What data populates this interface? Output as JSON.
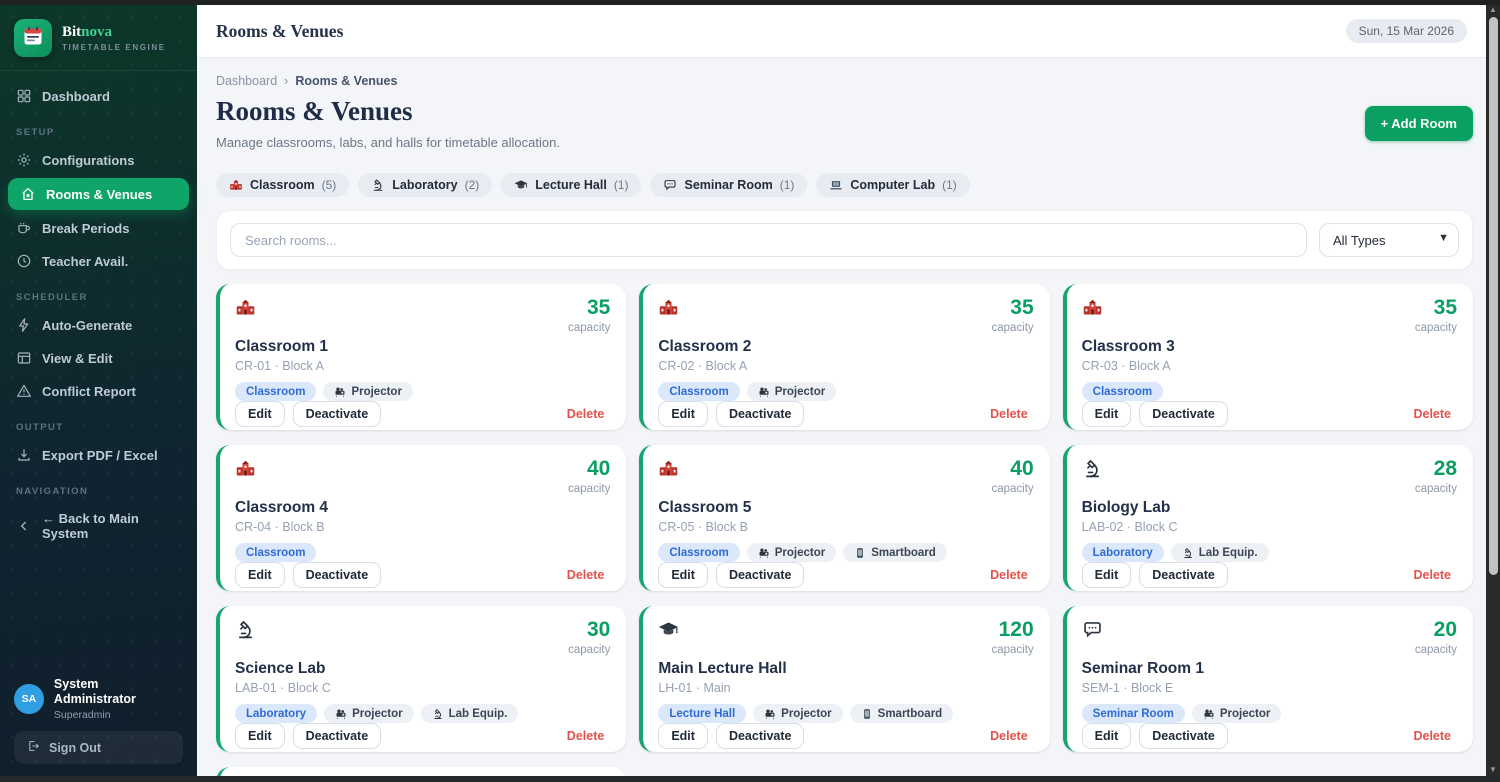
{
  "colors": {
    "accent_green": "#0aa061",
    "card_border_green": "#16a571",
    "tag_blue_bg": "#dbe7fb",
    "tag_blue_text": "#2e6bd3",
    "delete_red": "#e4524c",
    "avatar_blue": "#2f9fe2",
    "active_item_green": "#0fa569"
  },
  "sidebar": {
    "brand": {
      "name_primary": "Bit",
      "name_secondary": "nova",
      "tagline": "TIMETABLE ENGINE"
    },
    "sections": [
      {
        "label": "",
        "items": [
          {
            "icon": "dashboard-grid-icon",
            "label": "Dashboard",
            "active": false
          }
        ]
      },
      {
        "label": "SETUP",
        "items": [
          {
            "icon": "gear-icon",
            "label": "Configurations",
            "active": false
          },
          {
            "icon": "home-icon",
            "label": "Rooms & Venues",
            "active": true
          },
          {
            "icon": "coffee-cup-icon",
            "label": "Break Periods",
            "active": false
          },
          {
            "icon": "clock-icon",
            "label": "Teacher Avail.",
            "active": false
          }
        ]
      },
      {
        "label": "SCHEDULER",
        "items": [
          {
            "icon": "lightning-icon",
            "label": "Auto-Generate",
            "active": false
          },
          {
            "icon": "table-icon",
            "label": "View & Edit",
            "active": false
          },
          {
            "icon": "warning-triangle-icon",
            "label": "Conflict Report",
            "active": false
          }
        ]
      },
      {
        "label": "OUTPUT",
        "items": [
          {
            "icon": "download-icon",
            "label": "Export PDF / Excel",
            "active": false
          }
        ]
      },
      {
        "label": "NAVIGATION",
        "items": [
          {
            "icon": "chevron-left-icon",
            "label": "← Back to Main System",
            "active": false
          }
        ]
      }
    ],
    "user": {
      "initials": "SA",
      "name": "System Administrator",
      "role": "Superadmin",
      "signout_label": "Sign Out"
    }
  },
  "topbar": {
    "title": "Rooms & Venues",
    "date": "Sun, 15 Mar 2026"
  },
  "breadcrumb": {
    "parent": "Dashboard",
    "separator": "›",
    "current": "Rooms & Venues"
  },
  "header": {
    "title": "Rooms & Venues",
    "subtitle": "Manage classrooms, labs, and halls for timetable allocation.",
    "add_button": "+ Add Room"
  },
  "filters": {
    "chips": [
      {
        "icon": "school-icon",
        "label": "Classroom",
        "count": "(5)"
      },
      {
        "icon": "microscope-icon",
        "label": "Laboratory",
        "count": "(2)"
      },
      {
        "icon": "graduation-cap-icon",
        "label": "Lecture Hall",
        "count": "(1)"
      },
      {
        "icon": "speech-bubble-icon",
        "label": "Seminar Room",
        "count": "(1)"
      },
      {
        "icon": "laptop-icon",
        "label": "Computer Lab",
        "count": "(1)"
      }
    ]
  },
  "search": {
    "placeholder": "Search rooms...",
    "type_filter": "All Types"
  },
  "rooms": {
    "capacity_label": "capacity",
    "actions": {
      "edit": "Edit",
      "deactivate": "Deactivate",
      "delete": "Delete"
    },
    "cards": [
      {
        "icon": "school-icon",
        "name": "Classroom 1",
        "code": "CR-01 · Block A",
        "capacity": "35",
        "type_tag": "Classroom",
        "feature_tags": [
          {
            "icon": "projector-icon",
            "label": "Projector"
          }
        ]
      },
      {
        "icon": "school-icon",
        "name": "Classroom 2",
        "code": "CR-02 · Block A",
        "capacity": "35",
        "type_tag": "Classroom",
        "feature_tags": [
          {
            "icon": "projector-icon",
            "label": "Projector"
          }
        ]
      },
      {
        "icon": "school-icon",
        "name": "Classroom 3",
        "code": "CR-03 · Block A",
        "capacity": "35",
        "type_tag": "Classroom",
        "feature_tags": []
      },
      {
        "icon": "school-icon",
        "name": "Classroom 4",
        "code": "CR-04 · Block B",
        "capacity": "40",
        "type_tag": "Classroom",
        "feature_tags": []
      },
      {
        "icon": "school-icon",
        "name": "Classroom 5",
        "code": "CR-05 · Block B",
        "capacity": "40",
        "type_tag": "Classroom",
        "feature_tags": [
          {
            "icon": "projector-icon",
            "label": "Projector"
          },
          {
            "icon": "smartboard-icon",
            "label": "Smartboard"
          }
        ]
      },
      {
        "icon": "microscope-icon",
        "name": "Biology Lab",
        "code": "LAB-02 · Block C",
        "capacity": "28",
        "type_tag": "Laboratory",
        "feature_tags": [
          {
            "icon": "microscope-icon",
            "label": "Lab Equip."
          }
        ]
      },
      {
        "icon": "microscope-icon",
        "name": "Science Lab",
        "code": "LAB-01 · Block C",
        "capacity": "30",
        "type_tag": "Laboratory",
        "feature_tags": [
          {
            "icon": "projector-icon",
            "label": "Projector"
          },
          {
            "icon": "microscope-icon",
            "label": "Lab Equip."
          }
        ]
      },
      {
        "icon": "graduation-cap-icon",
        "name": "Main Lecture Hall",
        "code": "LH-01 · Main",
        "capacity": "120",
        "type_tag": "Lecture Hall",
        "feature_tags": [
          {
            "icon": "projector-icon",
            "label": "Projector"
          },
          {
            "icon": "smartboard-icon",
            "label": "Smartboard"
          }
        ]
      },
      {
        "icon": "speech-bubble-icon",
        "name": "Seminar Room 1",
        "code": "SEM-1 · Block E",
        "capacity": "20",
        "type_tag": "Seminar Room",
        "feature_tags": [
          {
            "icon": "projector-icon",
            "label": "Projector"
          }
        ]
      }
    ]
  }
}
